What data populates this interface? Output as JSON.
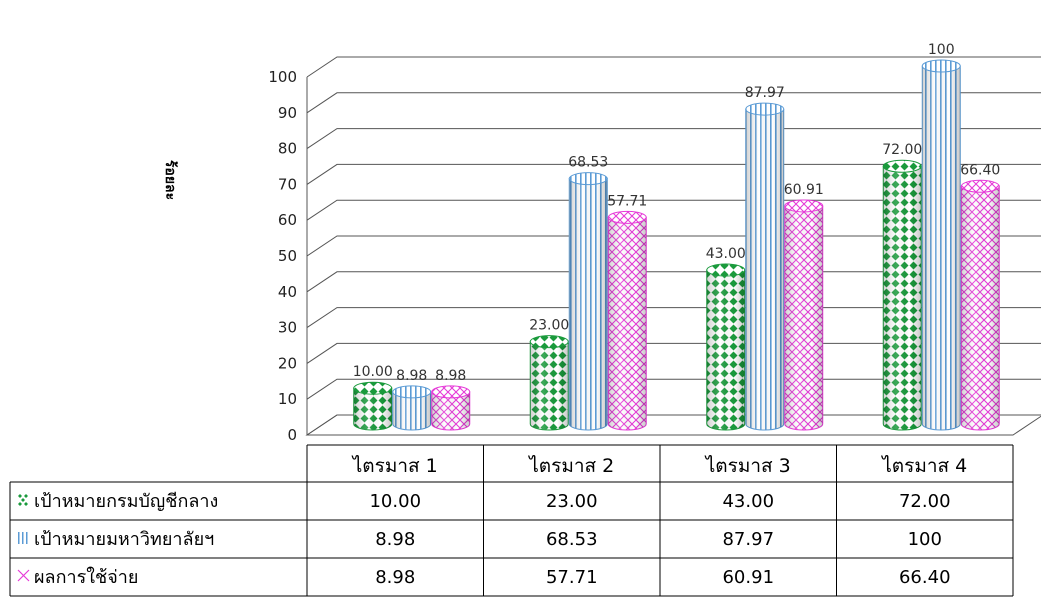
{
  "chart_data": {
    "type": "bar",
    "ylabel": "ร้อยละ",
    "ylim": [
      0,
      100
    ],
    "yticks": [
      "0",
      "10",
      "20",
      "30",
      "40",
      "50",
      "60",
      "70",
      "80",
      "90",
      "100"
    ],
    "categories": [
      "ไตรมาส 1",
      "ไตรมาส 2",
      "ไตรมาส 3",
      "ไตรมาส 4"
    ],
    "series": [
      {
        "name": "เป้าหมายกรมบัญชีกลาง",
        "values": [
          10.0,
          23.0,
          43.0,
          72.0
        ],
        "labels": [
          "10.00",
          "23.00",
          "43.00",
          "72.00"
        ],
        "color": "#1a9a3c",
        "pattern": "diamond"
      },
      {
        "name": "เป้าหมายมหาวิทยาลัยฯ",
        "values": [
          8.98,
          68.53,
          87.97,
          100
        ],
        "labels": [
          "8.98",
          "68.53",
          "87.97",
          "100"
        ],
        "color": "#5b9bd5",
        "pattern": "vertical-lines"
      },
      {
        "name": "ผลการใช้จ่าย",
        "values": [
          8.98,
          57.71,
          60.91,
          66.4
        ],
        "labels": [
          "8.98",
          "57.71",
          "60.91",
          "66.40"
        ],
        "color": "#e63ad8",
        "pattern": "crosshatch"
      }
    ],
    "grid": true,
    "data_table": true
  }
}
